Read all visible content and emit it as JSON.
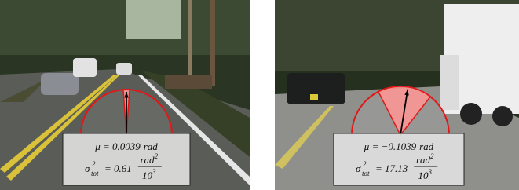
{
  "panels": [
    {
      "mu": "μ = 0.0039",
      "mu_unit": "rad",
      "sigma": "σ",
      "sigma_sup": "2",
      "sigma_sub": "tot",
      "sigma_value": "= 0.61",
      "frac_num": "rad",
      "frac_num_sup": "2",
      "frac_den": "10",
      "frac_den_sup": "3"
    },
    {
      "mu": "μ = −0.1039",
      "mu_unit": "rad",
      "sigma": "σ",
      "sigma_sup": "2",
      "sigma_sub": "tot",
      "sigma_value": "= 17.13",
      "frac_num": "rad",
      "frac_num_sup": "2",
      "frac_den": "10",
      "frac_den_sup": "3"
    }
  ]
}
